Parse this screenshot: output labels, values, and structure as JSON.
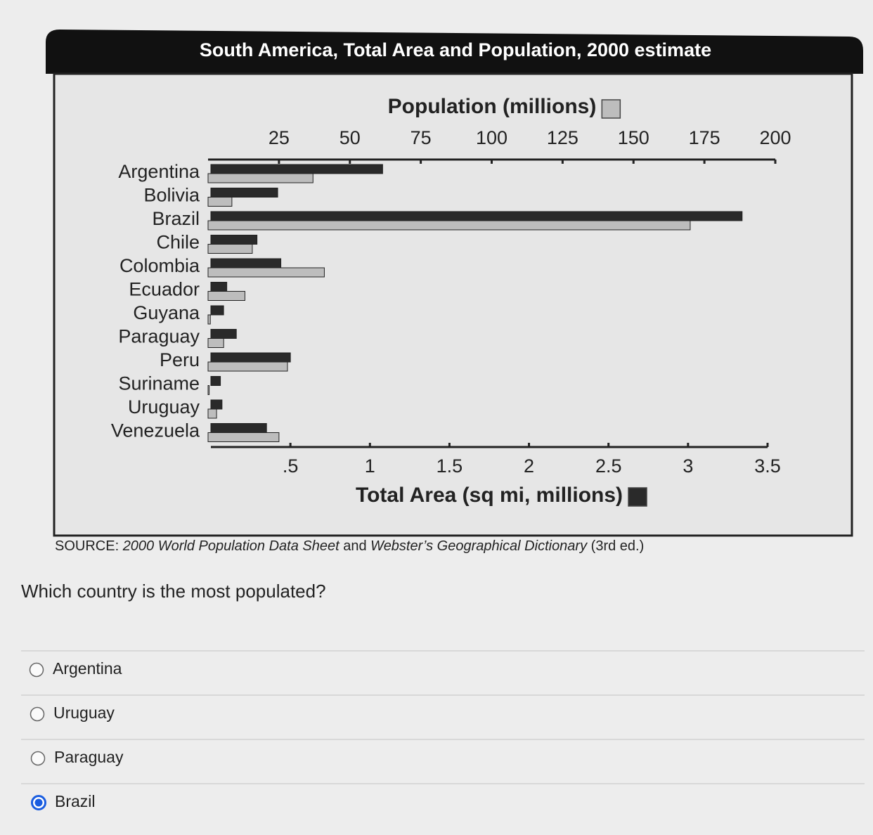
{
  "chart_data": {
    "type": "bar",
    "orientation": "horizontal",
    "title": "South America, Total Area and Population, 2000 estimate",
    "x2label": "Population (millions)",
    "xlabel": "Total Area (sq mi, millions)",
    "source": [
      "SOURCE:",
      "2000 World Population Data Sheet",
      "and",
      "Webster’s Geographical Dictionary",
      "(3rd ed.)"
    ],
    "categories": [
      "Argentina",
      "Bolivia",
      "Brazil",
      "Chile",
      "Colombia",
      "Ecuador",
      "Guyana",
      "Paraguay",
      "Peru",
      "Suriname",
      "Uruguay",
      "Venezuela"
    ],
    "series": [
      {
        "name": "Total Area (sq mi, millions)",
        "color": "#2a2a2a",
        "values": [
          1.08,
          0.42,
          3.34,
          0.29,
          0.44,
          0.1,
          0.08,
          0.16,
          0.5,
          0.06,
          0.07,
          0.35
        ]
      },
      {
        "name": "Population (millions)",
        "color": "#bdbdbd",
        "axis": "x2",
        "values": [
          37,
          8.4,
          170,
          15.6,
          41,
          13,
          0.8,
          5.5,
          28,
          0.4,
          3,
          25
        ]
      }
    ],
    "xlim": [
      0,
      3.5
    ],
    "xticks": [
      {
        "value": 0.5,
        "label": ".5"
      },
      1,
      1.5,
      2,
      2.5,
      3,
      3.5
    ],
    "x2lim": [
      0,
      200
    ],
    "x2ticks": [
      25,
      50,
      75,
      100,
      125,
      150,
      175,
      200
    ]
  },
  "question": "Which country is the most populated?",
  "options": [
    {
      "label": "Argentina",
      "checked": false
    },
    {
      "label": "Uruguay",
      "checked": false
    },
    {
      "label": "Paraguay",
      "checked": false
    },
    {
      "label": "Brazil",
      "checked": true
    }
  ]
}
